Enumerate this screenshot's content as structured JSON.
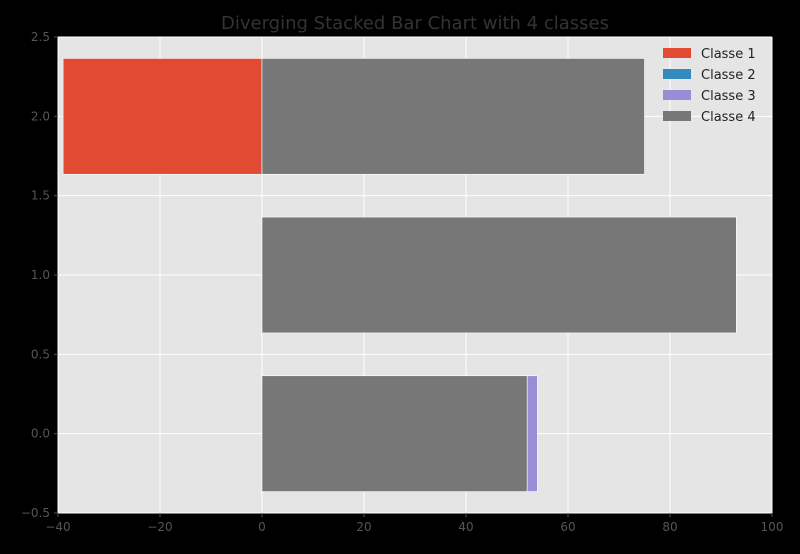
{
  "chart_data": {
    "type": "bar",
    "orientation": "horizontal",
    "stacked": true,
    "diverging": true,
    "title": "Diverging Stacked Bar Chart with 4 classes",
    "xlabel": "",
    "ylabel": "",
    "xlim": [
      -40,
      100
    ],
    "ylim": [
      -0.5,
      2.5
    ],
    "xticks": [
      -40,
      -20,
      0,
      20,
      40,
      60,
      80,
      100
    ],
    "xtick_labels": [
      "−40",
      "−20",
      "0",
      "20",
      "40",
      "60",
      "80",
      "100"
    ],
    "yticks": [
      -0.5,
      0.0,
      0.5,
      1.0,
      1.5,
      2.0,
      2.5
    ],
    "ytick_labels": [
      "−0.5",
      "0.0",
      "0.5",
      "1.0",
      "1.5",
      "2.0",
      "2.5"
    ],
    "grid": true,
    "legend_position": "top-right",
    "bar_height": 0.73,
    "y": [
      0,
      1,
      2
    ],
    "series": [
      {
        "name": "Classe 1",
        "color": "#E24A33",
        "values": [
          0,
          0,
          -39
        ],
        "negative": true
      },
      {
        "name": "Classe 2",
        "color": "#348ABD",
        "values": [
          0,
          0,
          0
        ],
        "negative": false
      },
      {
        "name": "Classe 4",
        "color": "#777777",
        "values": [
          52,
          93,
          75
        ],
        "negative": false
      },
      {
        "name": "Classe 3",
        "color": "#988ED5",
        "values": [
          2,
          0,
          0
        ],
        "negative": false
      }
    ],
    "legend": [
      {
        "name": "Classe 1",
        "color": "#E24A33"
      },
      {
        "name": "Classe 2",
        "color": "#348ABD"
      },
      {
        "name": "Classe 3",
        "color": "#988ED5"
      },
      {
        "name": "Classe 4",
        "color": "#777777"
      }
    ],
    "colors": {
      "background": "#000000",
      "plot_area": "#E5E5E5",
      "grid": "#FFFFFF",
      "tick_label": "#555555",
      "title": "#333333",
      "legend_text": "#222222"
    }
  }
}
